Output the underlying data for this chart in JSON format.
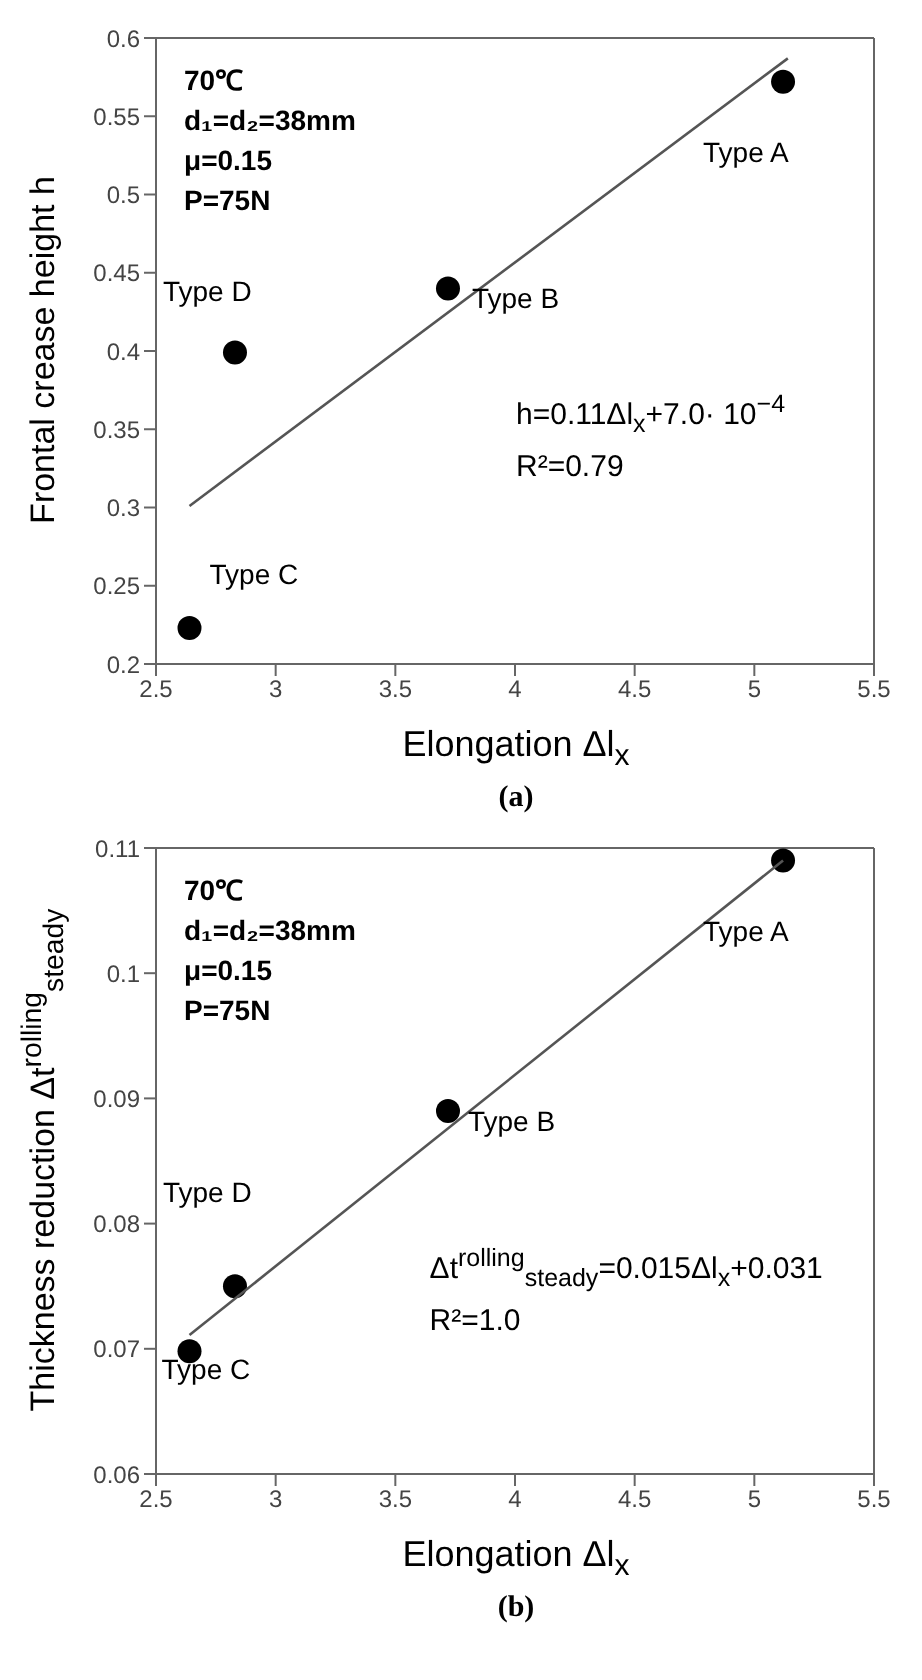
{
  "chart_data": [
    {
      "type": "scatter",
      "ylabel": "Frontal crease height  h",
      "xlabel": "Elongation Δl$_{x}$",
      "xlim": [
        2.5,
        5.5
      ],
      "xticks": [
        2.5,
        3,
        3.5,
        4,
        4.5,
        5,
        5.5
      ],
      "ylim": [
        0.2,
        0.6
      ],
      "yticks": [
        0.2,
        0.25,
        0.3,
        0.35,
        0.4,
        0.45,
        0.5,
        0.55,
        0.6
      ],
      "grid": false,
      "marker": "circle",
      "series": [
        {
          "color": "#000000",
          "x": [
            5.12,
            3.72,
            2.64,
            2.83
          ],
          "values": [
            0.572,
            0.44,
            0.223,
            0.399
          ]
        },
        {
          "type": "line",
          "color": "#555555",
          "marker": "none",
          "x": [
            2.64,
            5.14
          ],
          "values": [
            0.301,
            0.587
          ]
        }
      ],
      "annotations": [
        "70℃",
        "d₁=d₂=38mm",
        "μ=0.15",
        "P=75N",
        "h=0.11Δl$_{x}$+7.0· 10$^{−4}$",
        "R²=0.79",
        "(a)",
        {
          "text": "Type A",
          "x": 5.12,
          "y": 0.572
        },
        {
          "text": "Type B",
          "x": 3.72,
          "y": 0.44
        },
        {
          "text": "Type C",
          "x": 2.64,
          "y": 0.223
        },
        {
          "text": "Type D",
          "x": 2.83,
          "y": 0.399
        }
      ]
    },
    {
      "type": "scatter",
      "ylabel": "Thickness reduction Δt$^{rolling}$$_{steady}$",
      "xlabel": "Elongation Δl$_{x}$",
      "xlim": [
        2.5,
        5.5
      ],
      "xticks": [
        2.5,
        3,
        3.5,
        4,
        4.5,
        5,
        5.5
      ],
      "ylim": [
        0.06,
        0.11
      ],
      "yticks": [
        0.06,
        0.07,
        0.08,
        0.09,
        0.1,
        0.11
      ],
      "grid": false,
      "marker": "circle",
      "series": [
        {
          "color": "#000000",
          "x": [
            5.12,
            3.72,
            2.64,
            2.83
          ],
          "values": [
            0.109,
            0.089,
            0.0698,
            0.075
          ]
        },
        {
          "type": "line",
          "color": "#555555",
          "marker": "none",
          "x": [
            2.64,
            5.12
          ],
          "values": [
            0.0711,
            0.109
          ]
        }
      ],
      "annotations": [
        "70℃",
        "d₁=d₂=38mm",
        "μ=0.15",
        "P=75N",
        "Δt$^{rolling}$$_{steady}$=0.015Δl$_{x}$+0.031",
        "R²=1.0",
        "(b)",
        {
          "text": "Type A",
          "x": 5.12,
          "y": 0.109
        },
        {
          "text": "Type B",
          "x": 3.72,
          "y": 0.089
        },
        {
          "text": "Type C",
          "x": 2.64,
          "y": 0.0698
        },
        {
          "text": "Type D",
          "x": 2.83,
          "y": 0.075
        }
      ]
    }
  ]
}
